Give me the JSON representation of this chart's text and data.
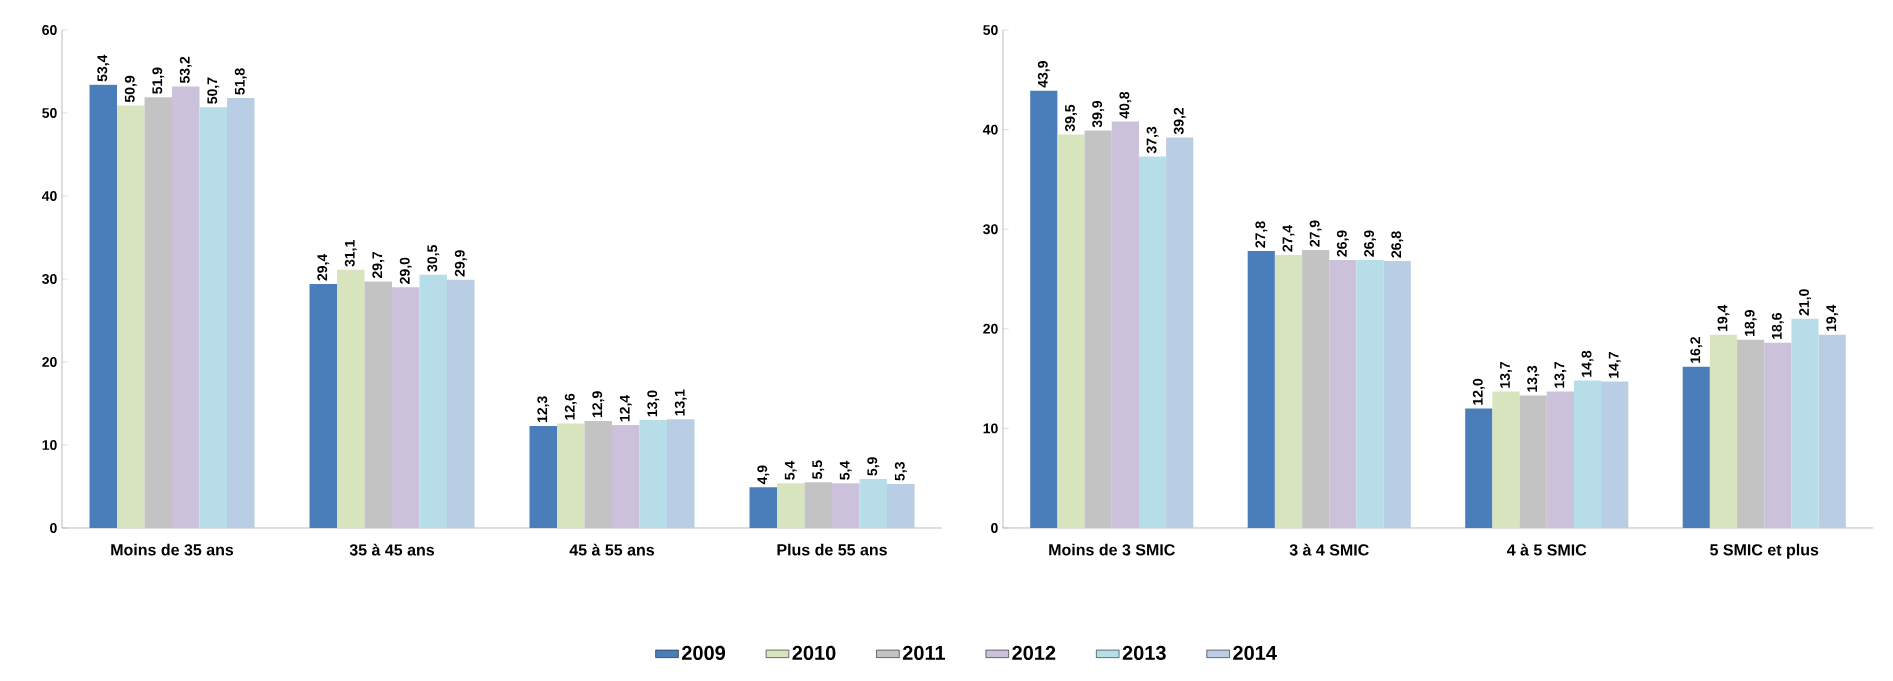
{
  "chart_data": [
    {
      "type": "bar",
      "categories": [
        "Moins de 35 ans",
        "35 à 45 ans",
        "45 à 55 ans",
        "Plus de 55 ans"
      ],
      "ylim": [
        0,
        60
      ],
      "yticks": [
        0,
        10,
        20,
        30,
        40,
        50,
        60
      ],
      "legend": "bottom",
      "series": [
        {
          "name": "2009",
          "color": "#4a7ebb",
          "values": [
            53.4,
            29.4,
            12.3,
            4.9
          ],
          "value_labels": [
            "53,4",
            "29,4",
            "12,3",
            "4,9"
          ]
        },
        {
          "name": "2010",
          "color": "#d7e4bd",
          "values": [
            50.9,
            31.1,
            12.6,
            5.4
          ],
          "value_labels": [
            "50,9",
            "31,1",
            "12,6",
            "5,4"
          ]
        },
        {
          "name": "2011",
          "color": "#c3c3c3",
          "values": [
            51.9,
            29.7,
            12.9,
            5.5
          ],
          "value_labels": [
            "51,9",
            "29,7",
            "12,9",
            "5,5"
          ]
        },
        {
          "name": "2012",
          "color": "#ccc1da",
          "values": [
            53.2,
            29.0,
            12.4,
            5.4
          ],
          "value_labels": [
            "53,2",
            "29,0",
            "12,4",
            "5,4"
          ]
        },
        {
          "name": "2013",
          "color": "#b7dee8",
          "values": [
            50.7,
            30.5,
            13.0,
            5.9
          ],
          "value_labels": [
            "50,7",
            "30,5",
            "13,0",
            "5,9"
          ]
        },
        {
          "name": "2014",
          "color": "#b9cde5",
          "values": [
            51.8,
            29.9,
            13.1,
            5.3
          ],
          "value_labels": [
            "51,8",
            "29,9",
            "13,1",
            "5,3"
          ]
        }
      ]
    },
    {
      "type": "bar",
      "categories": [
        "Moins de 3 SMIC",
        "3 à 4 SMIC",
        "4 à 5 SMIC",
        "5 SMIC et plus"
      ],
      "ylim": [
        0,
        50
      ],
      "yticks": [
        0,
        10,
        20,
        30,
        40,
        50
      ],
      "series": [
        {
          "color": "#4a7ebb",
          "values": [
            43.9,
            27.8,
            12.0,
            16.2
          ],
          "value_labels": [
            "43,9",
            "27,8",
            "12,0",
            "16,2"
          ]
        },
        {
          "color": "#d7e4bd",
          "values": [
            39.5,
            27.4,
            13.7,
            19.4
          ],
          "value_labels": [
            "39,5",
            "27,4",
            "13,7",
            "19,4"
          ]
        },
        {
          "color": "#c3c3c3",
          "values": [
            39.9,
            27.9,
            13.3,
            18.9
          ],
          "value_labels": [
            "39,9",
            "27,9",
            "13,3",
            "18,9"
          ]
        },
        {
          "color": "#ccc1da",
          "values": [
            40.8,
            26.9,
            13.7,
            18.6
          ],
          "value_labels": [
            "40,8",
            "26,9",
            "13,7",
            "18,6"
          ]
        },
        {
          "color": "#b7dee8",
          "values": [
            37.3,
            26.9,
            14.8,
            21.0
          ],
          "value_labels": [
            "37,3",
            "26,9",
            "14,8",
            "21,0"
          ]
        },
        {
          "color": "#b9cde5",
          "values": [
            39.2,
            26.8,
            14.7,
            19.4
          ],
          "value_labels": [
            "39,2",
            "26,8",
            "14,7",
            "19,4"
          ]
        }
      ]
    }
  ]
}
